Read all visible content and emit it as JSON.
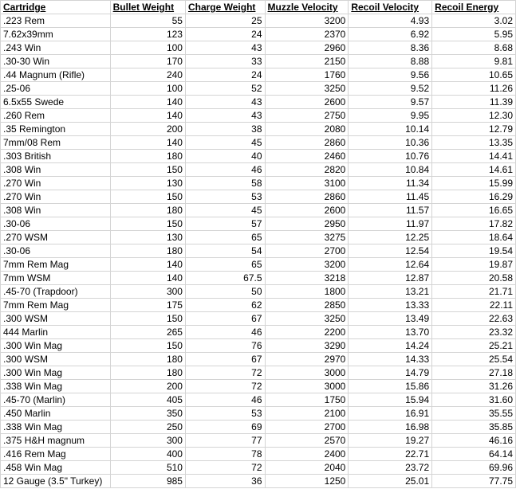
{
  "table": {
    "columns": [
      "Cartridge",
      "Bullet Weight",
      "Charge Weight",
      "Muzzle Velocity",
      "Recoil Velocity",
      "Recoil Energy"
    ],
    "rows": [
      [
        ".223 Rem",
        "55",
        "25",
        "3200",
        "4.93",
        "3.02"
      ],
      [
        "7.62x39mm",
        "123",
        "24",
        "2370",
        "6.92",
        "5.95"
      ],
      [
        ".243 Win",
        "100",
        "43",
        "2960",
        "8.36",
        "8.68"
      ],
      [
        ".30-30 Win",
        "170",
        "33",
        "2150",
        "8.88",
        "9.81"
      ],
      [
        ".44 Magnum (Rifle)",
        "240",
        "24",
        "1760",
        "9.56",
        "10.65"
      ],
      [
        ".25-06",
        "100",
        "52",
        "3250",
        "9.52",
        "11.26"
      ],
      [
        "6.5x55 Swede",
        "140",
        "43",
        "2600",
        "9.57",
        "11.39"
      ],
      [
        ".260 Rem",
        "140",
        "43",
        "2750",
        "9.95",
        "12.30"
      ],
      [
        ".35 Remington",
        "200",
        "38",
        "2080",
        "10.14",
        "12.79"
      ],
      [
        "7mm/08 Rem",
        "140",
        "45",
        "2860",
        "10.36",
        "13.35"
      ],
      [
        ".303 British",
        "180",
        "40",
        "2460",
        "10.76",
        "14.41"
      ],
      [
        ".308 Win",
        "150",
        "46",
        "2820",
        "10.84",
        "14.61"
      ],
      [
        ".270 Win",
        "130",
        "58",
        "3100",
        "11.34",
        "15.99"
      ],
      [
        ".270 Win",
        "150",
        "53",
        "2860",
        "11.45",
        "16.29"
      ],
      [
        ".308 Win",
        "180",
        "45",
        "2600",
        "11.57",
        "16.65"
      ],
      [
        ".30-06",
        "150",
        "57",
        "2950",
        "11.97",
        "17.82"
      ],
      [
        ".270 WSM",
        "130",
        "65",
        "3275",
        "12.25",
        "18.64"
      ],
      [
        ".30-06",
        "180",
        "54",
        "2700",
        "12.54",
        "19.54"
      ],
      [
        "7mm Rem Mag",
        "140",
        "65",
        "3200",
        "12.64",
        "19.87"
      ],
      [
        "7mm WSM",
        "140",
        "67.5",
        "3218",
        "12.87",
        "20.58"
      ],
      [
        ".45-70 (Trapdoor)",
        "300",
        "50",
        "1800",
        "13.21",
        "21.71"
      ],
      [
        "7mm Rem Mag",
        "175",
        "62",
        "2850",
        "13.33",
        "22.11"
      ],
      [
        ".300 WSM",
        "150",
        "67",
        "3250",
        "13.49",
        "22.63"
      ],
      [
        "444 Marlin",
        "265",
        "46",
        "2200",
        "13.70",
        "23.32"
      ],
      [
        ".300 Win Mag",
        "150",
        "76",
        "3290",
        "14.24",
        "25.21"
      ],
      [
        ".300 WSM",
        "180",
        "67",
        "2970",
        "14.33",
        "25.54"
      ],
      [
        ".300 Win Mag",
        "180",
        "72",
        "3000",
        "14.79",
        "27.18"
      ],
      [
        ".338 Win Mag",
        "200",
        "72",
        "3000",
        "15.86",
        "31.26"
      ],
      [
        ".45-70 (Marlin)",
        "405",
        "46",
        "1750",
        "15.94",
        "31.60"
      ],
      [
        ".450 Marlin",
        "350",
        "53",
        "2100",
        "16.91",
        "35.55"
      ],
      [
        ".338 Win Mag",
        "250",
        "69",
        "2700",
        "16.98",
        "35.85"
      ],
      [
        ".375 H&H magnum",
        "300",
        "77",
        "2570",
        "19.27",
        "46.16"
      ],
      [
        ".416 Rem Mag",
        "400",
        "78",
        "2400",
        "22.71",
        "64.14"
      ],
      [
        ".458 Win Mag",
        "510",
        "72",
        "2040",
        "23.72",
        "69.96"
      ],
      [
        "12 Gauge (3.5\" Turkey)",
        "985",
        "36",
        "1250",
        "25.01",
        "77.75"
      ]
    ]
  }
}
